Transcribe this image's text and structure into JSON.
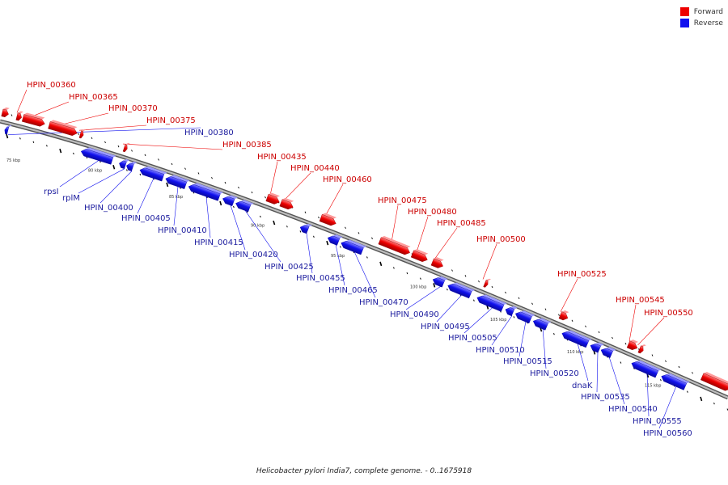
{
  "legend": [
    {
      "label": "Forward",
      "color": "#ee0000"
    },
    {
      "label": "Reverse",
      "color": "#1010ee"
    }
  ],
  "caption": "Helicobacter pylori India7, complete genome. - 0..1675918",
  "colors": {
    "forward": "#ee0000",
    "reverse": "#1010ee",
    "label_forward": "#cc0000",
    "label_reverse": "#2020a0",
    "backbone": "#888888"
  },
  "scale_labels": [
    "75 kbp",
    "80 kbp",
    "85 kbp",
    "90 kbp",
    "95 kbp",
    "100 kbp",
    "105 kbp",
    "110 kbp",
    "115 kbp"
  ],
  "forward_genes": [
    "HPIN_00360",
    "HPIN_00365",
    "HPIN_00370",
    "HPIN_00375",
    "HPIN_00385",
    "HPIN_00435",
    "HPIN_00440",
    "HPIN_00460",
    "HPIN_00475",
    "HPIN_00480",
    "HPIN_00485",
    "HPIN_00500",
    "HPIN_00525",
    "HPIN_00545",
    "HPIN_00550"
  ],
  "reverse_genes": [
    "HPIN_00380",
    "rpsI",
    "rplM",
    "HPIN_00400",
    "HPIN_00405",
    "HPIN_00410",
    "HPIN_00415",
    "HPIN_00420",
    "HPIN_00425",
    "HPIN_00455",
    "HPIN_00465",
    "HPIN_00470",
    "HPIN_00490",
    "HPIN_00495",
    "HPIN_00505",
    "HPIN_00510",
    "HPIN_00515",
    "HPIN_00520",
    "dnaK",
    "HPIN_00535",
    "HPIN_00540",
    "HPIN_00555",
    "HPIN_00560"
  ]
}
